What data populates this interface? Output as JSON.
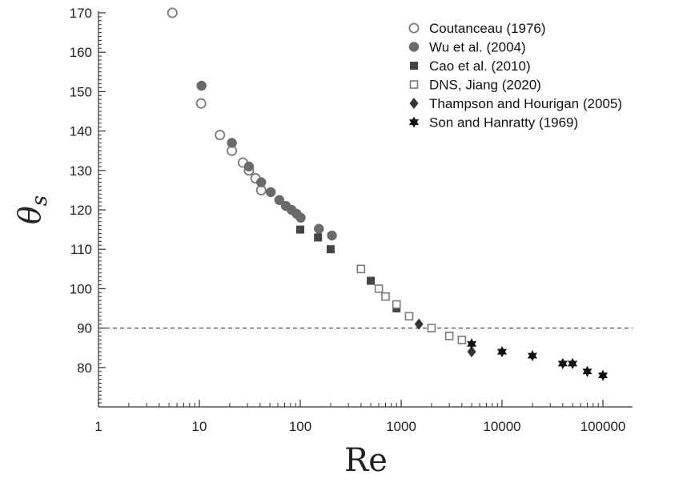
{
  "chart_data": {
    "type": "scatter",
    "title": "",
    "xlabel": "Re",
    "ylabel": "θs",
    "xscale": "log",
    "xlim": [
      1,
      200000
    ],
    "ylim": [
      70,
      170
    ],
    "x_ticks": [
      1,
      10,
      100,
      1000,
      10000,
      100000
    ],
    "x_tick_labels": [
      "1",
      "10",
      "100",
      "1000",
      "10000",
      "100000"
    ],
    "y_ticks": [
      80,
      90,
      100,
      110,
      120,
      130,
      140,
      150,
      160,
      170
    ],
    "y_tick_labels": [
      "80",
      "90",
      "100",
      "110",
      "120",
      "130",
      "140",
      "150",
      "160",
      "170"
    ],
    "grid": false,
    "legend_position": "top-right",
    "reference_line": {
      "y": 90,
      "style": "dashed"
    },
    "series": [
      {
        "name": "Coutanceau (1976)",
        "marker": "circle-open",
        "color": "#7a7a7a",
        "x": [
          5.4,
          10.4,
          16,
          21,
          27,
          31,
          36,
          41
        ],
        "y": [
          170,
          147,
          139,
          135,
          132,
          130,
          128,
          125
        ]
      },
      {
        "name": "Wu et al. (2004)",
        "marker": "circle-filled",
        "color": "#6a6a6a",
        "x": [
          10.5,
          21,
          31,
          41,
          51,
          62,
          72,
          82,
          92,
          101,
          153,
          206
        ],
        "y": [
          151.5,
          137,
          131,
          127,
          124.5,
          122.5,
          121,
          120,
          119,
          118,
          115.2,
          113.5
        ]
      },
      {
        "name": "Cao et al. (2010)",
        "marker": "square-filled",
        "color": "#444444",
        "x": [
          100,
          150,
          200,
          500,
          900
        ],
        "y": [
          115,
          113,
          110,
          102,
          95
        ]
      },
      {
        "name": "DNS, Jiang (2020)",
        "marker": "square-open",
        "color": "#7a7a7a",
        "x": [
          400,
          600,
          700,
          900,
          1200,
          2000,
          3000,
          4000
        ],
        "y": [
          105,
          100,
          98,
          96,
          93,
          90,
          88,
          87
        ]
      },
      {
        "name": "Thampson and Hourigan (2005)",
        "marker": "diamond-filled",
        "color": "#333333",
        "x": [
          1500,
          5000
        ],
        "y": [
          91,
          84
        ]
      },
      {
        "name": "Son and Hanratty (1969)",
        "marker": "star-filled",
        "color": "#111111",
        "x": [
          5000,
          10000,
          20000,
          40000,
          50000,
          70000,
          100000
        ],
        "y": [
          86,
          84,
          83,
          81,
          81,
          79,
          78
        ]
      }
    ]
  }
}
